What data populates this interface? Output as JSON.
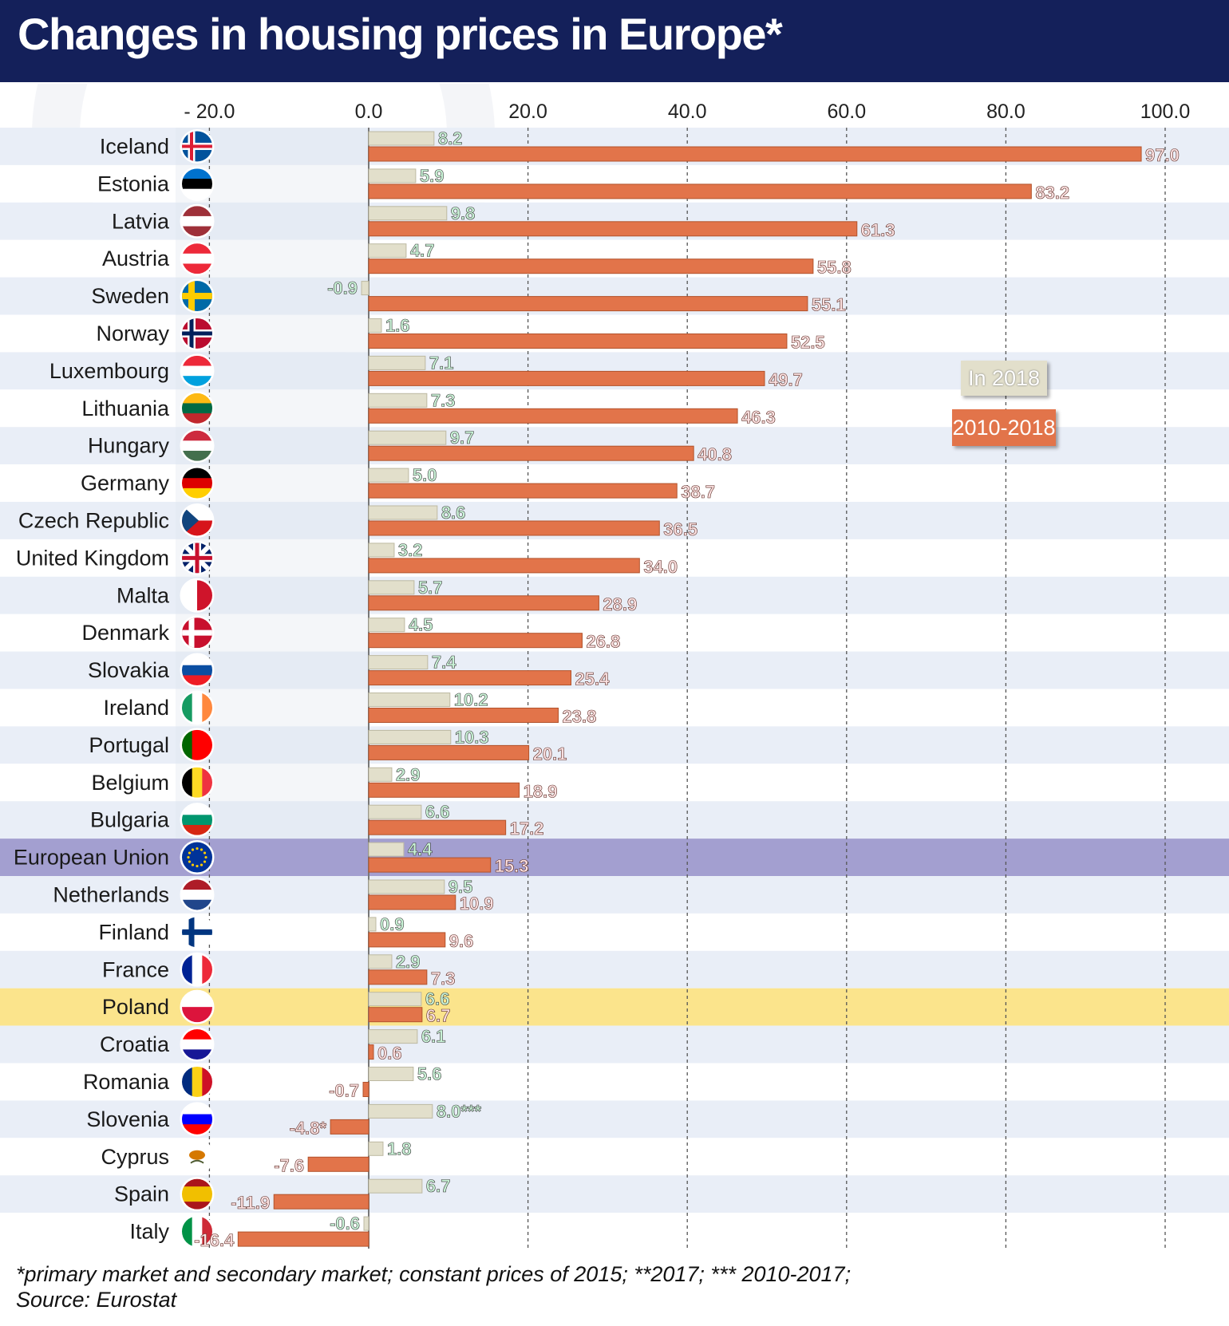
{
  "title": "Changes in housing prices in Europe*",
  "footnote": "*primary market and secondary market; constant prices of 2015; **2017; *** 2010-2017;",
  "source": "Source: Eurostat",
  "legend": {
    "in2018": "In 2018",
    "period": "2010-2018"
  },
  "colors": {
    "header_bg": "#14205a",
    "bar_2018": "#e2dfcb",
    "bar_period": "#e2744a",
    "label_2018_text": "#c9f2d6",
    "label_period_text": "#fbe0e0",
    "eu_highlight": "#a39fd0",
    "poland_highlight": "#fbe48c",
    "row_band": "#e9eef7"
  },
  "chart_data": {
    "type": "bar",
    "orientation": "horizontal",
    "xlim": [
      -20,
      100
    ],
    "ticks": [
      "- 20.0",
      "0.0",
      "20.0",
      "40.0",
      "60.0",
      "80.0",
      "100.0"
    ],
    "tick_values": [
      -20,
      0,
      20,
      40,
      60,
      80,
      100
    ],
    "grid": "vertical dashed",
    "legend_placement": "right, inside plot",
    "categories": [
      "Iceland",
      "Estonia",
      "Latvia",
      "Austria",
      "Sweden",
      "Norway",
      "Luxembourg",
      "Lithuania",
      "Hungary",
      "Germany",
      "Czech Republic",
      "United Kingdom",
      "Malta",
      "Denmark",
      "Slovakia",
      "Ireland",
      "Portugal",
      "Belgium",
      "Bulgaria",
      "European Union",
      "Netherlands",
      "Finland",
      "France",
      "Poland",
      "Croatia",
      "Romania",
      "Slovenia",
      "Cyprus",
      "Spain",
      "Italy"
    ],
    "series": [
      {
        "name": "In 2018",
        "values": [
          8.2,
          5.9,
          9.8,
          4.7,
          -0.9,
          1.6,
          7.1,
          7.3,
          9.7,
          5.0,
          8.6,
          3.2,
          5.7,
          4.5,
          7.4,
          10.2,
          10.3,
          2.9,
          6.6,
          4.4,
          9.5,
          0.9,
          2.9,
          6.6,
          6.1,
          5.6,
          8.0,
          1.8,
          6.7,
          -0.6
        ],
        "labels": [
          "8.2",
          "5.9",
          "9.8",
          "4.7",
          "-0.9",
          "1.6",
          "7.1",
          "7.3",
          "9.7",
          "5.0",
          "8.6",
          "3.2",
          "5.7",
          "4.5",
          "7.4",
          "10.2",
          "10.3",
          "2.9",
          "6.6",
          "4.4",
          "9.5",
          "0.9",
          "2.9",
          "6.6",
          "6.1",
          "5.6",
          "8.0***",
          "1.8",
          "6.7",
          "-0.6"
        ]
      },
      {
        "name": "2010-2018",
        "values": [
          97.0,
          83.2,
          61.3,
          55.8,
          55.1,
          52.5,
          49.7,
          46.3,
          40.8,
          38.7,
          36.5,
          34.0,
          28.9,
          26.8,
          25.4,
          23.8,
          20.1,
          18.9,
          17.2,
          15.3,
          10.9,
          9.6,
          7.3,
          6.7,
          0.6,
          -0.7,
          -4.8,
          -7.6,
          -11.9,
          -16.4
        ],
        "labels": [
          "97.0",
          "83.2",
          "61.3",
          "55.8",
          "55.1",
          "52.5",
          "49.7",
          "46.3",
          "40.8",
          "38.7",
          "36.5",
          "34.0",
          "28.9",
          "26.8",
          "25.4",
          "23.8",
          "20.1",
          "18.9",
          "17.2",
          "15.3",
          "10.9",
          "9.6",
          "7.3",
          "6.7",
          "0.6",
          "-0.7",
          "-4.8*",
          "-7.6",
          "-11.9",
          "-16.4"
        ]
      }
    ],
    "highlighted_rows": {
      "European Union": "eu_highlight",
      "Poland": "poland_highlight"
    },
    "flags": [
      "iceland-flag-icon",
      "estonia-flag-icon",
      "latvia-flag-icon",
      "austria-flag-icon",
      "sweden-flag-icon",
      "norway-flag-icon",
      "luxembourg-flag-icon",
      "lithuania-flag-icon",
      "hungary-flag-icon",
      "germany-flag-icon",
      "czech-republic-flag-icon",
      "united-kingdom-flag-icon",
      "malta-flag-icon",
      "denmark-flag-icon",
      "slovakia-flag-icon",
      "ireland-flag-icon",
      "portugal-flag-icon",
      "belgium-flag-icon",
      "bulgaria-flag-icon",
      "european-union-flag-icon",
      "netherlands-flag-icon",
      "finland-flag-icon",
      "france-flag-icon",
      "poland-flag-icon",
      "croatia-flag-icon",
      "romania-flag-icon",
      "slovenia-flag-icon",
      "cyprus-flag-icon",
      "spain-flag-icon",
      "italy-flag-icon"
    ]
  }
}
